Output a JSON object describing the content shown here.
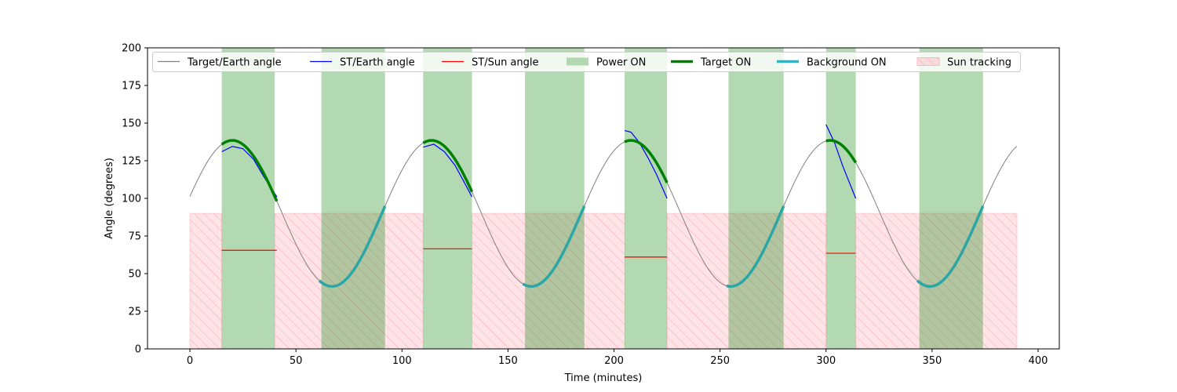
{
  "chart_data": {
    "type": "line",
    "title": "",
    "xlabel": "Time (minutes)",
    "ylabel": "Angle (degrees)",
    "xlim": [
      -20,
      410
    ],
    "ylim": [
      0,
      200
    ],
    "xticks": [
      0,
      50,
      100,
      150,
      200,
      250,
      300,
      350,
      400
    ],
    "yticks": [
      0,
      25,
      50,
      75,
      100,
      125,
      150,
      175,
      200
    ],
    "grid": false,
    "legend_placement": "top",
    "legend": [
      {
        "label": "Target/Earth angle",
        "kind": "line",
        "color": "#808080"
      },
      {
        "label": "ST/Earth angle",
        "kind": "line",
        "color": "#0000ff"
      },
      {
        "label": "ST/Sun angle",
        "kind": "line",
        "color": "#ff0000"
      },
      {
        "label": "Power ON",
        "kind": "patch",
        "color": "#b3d9b3"
      },
      {
        "label": "Target ON",
        "kind": "thickline",
        "color": "#008000"
      },
      {
        "label": "Background ON",
        "kind": "thickline",
        "color": "#17becf"
      },
      {
        "label": "Sun tracking",
        "kind": "hatch",
        "color": "#ffb6c1"
      }
    ],
    "target_earth_angle": {
      "name": "Target/Earth angle",
      "color": "#808080",
      "period_min": 94,
      "mean_deg": 90,
      "amplitude_deg": 48.5,
      "phase_min": 20,
      "x_range": [
        0,
        390
      ]
    },
    "power_on_intervals": [
      [
        15,
        40
      ],
      [
        62,
        92
      ],
      [
        110,
        133
      ],
      [
        158,
        186
      ],
      [
        205,
        225
      ],
      [
        254,
        280
      ],
      [
        300,
        314
      ],
      [
        344,
        374
      ]
    ],
    "sun_tracking": {
      "y_max": 90,
      "x_range": [
        0,
        390
      ],
      "gaps": [
        [
          15,
          40
        ],
        [
          110,
          133
        ],
        [
          205,
          225
        ],
        [
          300,
          314
        ]
      ]
    },
    "target_on_intervals": [
      [
        15,
        41
      ],
      [
        110,
        133
      ],
      [
        205,
        225
      ],
      [
        300,
        314
      ]
    ],
    "background_on_intervals": [
      [
        61,
        92
      ],
      [
        157,
        186
      ],
      [
        253,
        280
      ],
      [
        343,
        374
      ]
    ],
    "st_earth_segments": [
      {
        "x": [
          15,
          20,
          25,
          30,
          35,
          41
        ],
        "y": [
          131,
          134.5,
          133,
          126,
          114,
          101
        ]
      },
      {
        "x": [
          110,
          115,
          120,
          125,
          130,
          133
        ],
        "y": [
          134,
          136,
          131,
          122,
          109,
          101
        ]
      },
      {
        "x": [
          205,
          208,
          212,
          216,
          220,
          225
        ],
        "y": [
          145,
          144,
          137,
          127,
          116,
          100
        ]
      },
      {
        "x": [
          300,
          304,
          308,
          314
        ],
        "y": [
          149,
          137,
          121,
          100
        ]
      }
    ],
    "st_sun_segments": [
      {
        "x": [
          15,
          41
        ],
        "y": [
          65.5,
          65.5
        ]
      },
      {
        "x": [
          110,
          133
        ],
        "y": [
          66.5,
          66.5
        ]
      },
      {
        "x": [
          205,
          225
        ],
        "y": [
          61,
          61
        ]
      },
      {
        "x": [
          300,
          314
        ],
        "y": [
          63.5,
          63.5
        ]
      }
    ]
  }
}
